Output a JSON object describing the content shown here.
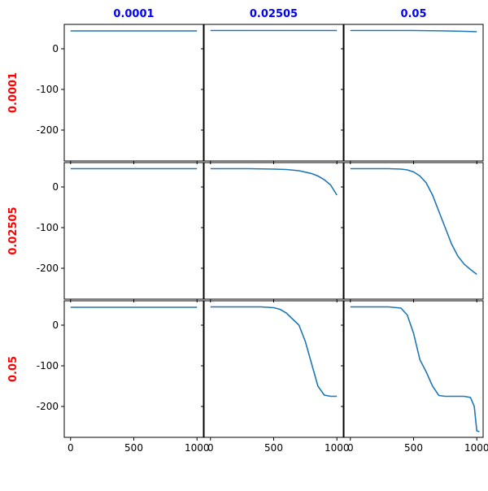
{
  "chart_data": [
    {
      "type": "line",
      "title": "0.0001",
      "ylabel": "0.0001",
      "color": "#1f77b4",
      "x": [
        0,
        250,
        500,
        750,
        1000
      ],
      "values": [
        44,
        44,
        44,
        44,
        44
      ],
      "xlim": [
        -50,
        1050
      ],
      "ylim": [
        -276,
        60
      ],
      "xticks": [
        0,
        500,
        1000
      ],
      "yticks": [
        0,
        -100,
        -200
      ]
    },
    {
      "type": "line",
      "title": "0.02505",
      "color": "#1f77b4",
      "x": [
        0,
        250,
        500,
        750,
        1000
      ],
      "values": [
        45,
        45,
        45,
        45,
        45
      ],
      "xlim": [
        -50,
        1050
      ],
      "ylim": [
        -276,
        60
      ],
      "xticks": [
        0,
        500,
        1000
      ],
      "yticks": [
        0,
        -100,
        -200
      ]
    },
    {
      "type": "line",
      "title": "0.05",
      "color": "#1f77b4",
      "x": [
        0,
        250,
        500,
        750,
        900,
        1000
      ],
      "values": [
        45,
        45,
        45,
        44,
        43,
        42
      ],
      "xlim": [
        -50,
        1050
      ],
      "ylim": [
        -276,
        60
      ],
      "xticks": [
        0,
        500,
        1000
      ],
      "yticks": [
        0,
        -100,
        -200
      ]
    },
    {
      "type": "line",
      "ylabel": "0.02505",
      "color": "#1f77b4",
      "x": [
        0,
        250,
        500,
        750,
        1000
      ],
      "values": [
        45,
        45,
        45,
        45,
        45
      ],
      "xlim": [
        -50,
        1050
      ],
      "ylim": [
        -276,
        60
      ],
      "xticks": [
        0,
        500,
        1000
      ],
      "yticks": [
        0,
        -100,
        -200
      ]
    },
    {
      "type": "line",
      "color": "#1f77b4",
      "x": [
        0,
        300,
        500,
        600,
        700,
        800,
        850,
        900,
        950,
        1000
      ],
      "values": [
        45,
        45,
        44,
        43,
        40,
        33,
        27,
        18,
        5,
        -20
      ],
      "xlim": [
        -50,
        1050
      ],
      "ylim": [
        -276,
        60
      ],
      "xticks": [
        0,
        500,
        1000
      ],
      "yticks": [
        0,
        -100,
        -200
      ]
    },
    {
      "type": "line",
      "color": "#1f77b4",
      "x": [
        0,
        300,
        400,
        450,
        500,
        550,
        600,
        650,
        700,
        750,
        800,
        850,
        900,
        950,
        1000
      ],
      "values": [
        45,
        45,
        44,
        42,
        37,
        27,
        10,
        -20,
        -60,
        -100,
        -140,
        -170,
        -190,
        -203,
        -215
      ],
      "xlim": [
        -50,
        1050
      ],
      "ylim": [
        -276,
        60
      ],
      "xticks": [
        0,
        500,
        1000
      ],
      "yticks": [
        0,
        -100,
        -200
      ]
    },
    {
      "type": "line",
      "ylabel": "0.05",
      "color": "#1f77b4",
      "x": [
        0,
        250,
        500,
        750,
        1000
      ],
      "values": [
        44,
        44,
        44,
        44,
        44
      ],
      "xlim": [
        -50,
        1050
      ],
      "ylim": [
        -276,
        60
      ],
      "xticks": [
        0,
        500,
        1000
      ],
      "yticks": [
        0,
        -100,
        -200
      ]
    },
    {
      "type": "line",
      "color": "#1f77b4",
      "x": [
        0,
        400,
        500,
        550,
        600,
        650,
        700,
        750,
        800,
        850,
        900,
        950,
        1000
      ],
      "values": [
        45,
        45,
        43,
        39,
        30,
        15,
        0,
        -40,
        -95,
        -150,
        -172,
        -175,
        -175
      ],
      "xlim": [
        -50,
        1050
      ],
      "ylim": [
        -276,
        60
      ],
      "xticks": [
        0,
        500,
        1000
      ],
      "yticks": [
        0,
        -100,
        -200
      ]
    },
    {
      "type": "line",
      "color": "#1f77b4",
      "x": [
        0,
        300,
        400,
        450,
        500,
        550,
        600,
        650,
        700,
        750,
        900,
        950,
        980,
        1000,
        1020
      ],
      "values": [
        45,
        45,
        42,
        25,
        -20,
        -85,
        -115,
        -150,
        -173,
        -175,
        -175,
        -178,
        -200,
        -260,
        -262
      ],
      "xlim": [
        -50,
        1050
      ],
      "ylim": [
        -276,
        60
      ],
      "xticks": [
        0,
        500,
        1000
      ],
      "yticks": [
        0,
        -100,
        -200
      ]
    }
  ]
}
